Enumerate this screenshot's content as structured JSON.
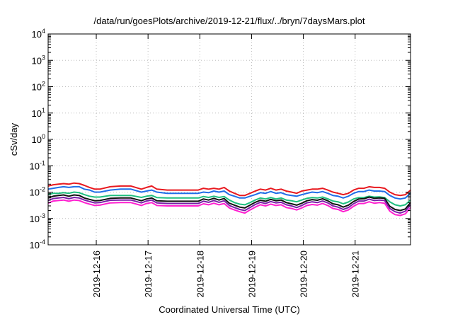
{
  "chart_data": {
    "type": "line",
    "title": "/data/run/goesPlots/archive/2019-12-21/flux/../bryn/7daysMars.plot",
    "xlabel": "Coordinated Universal Time (UTC)",
    "ylabel": "cSv/day",
    "yscale": "log",
    "ylim": [
      0.0001,
      10000
    ],
    "xlim": [
      0,
      7
    ],
    "grid": true,
    "y_ticks": [
      {
        "value": 0.0001,
        "base": "10",
        "exp": "-4"
      },
      {
        "value": 0.001,
        "base": "10",
        "exp": "-3"
      },
      {
        "value": 0.01,
        "base": "10",
        "exp": "-2"
      },
      {
        "value": 0.1,
        "base": "10",
        "exp": "-1"
      },
      {
        "value": 1,
        "base": "10",
        "exp": "0"
      },
      {
        "value": 10,
        "base": "10",
        "exp": "1"
      },
      {
        "value": 100,
        "base": "10",
        "exp": "2"
      },
      {
        "value": 1000,
        "base": "10",
        "exp": "3"
      },
      {
        "value": 10000,
        "base": "10",
        "exp": "4"
      }
    ],
    "x_ticks": [
      {
        "value": 0.93,
        "label": "2019-12-16"
      },
      {
        "value": 1.93,
        "label": "2019-12-17"
      },
      {
        "value": 2.93,
        "label": "2019-12-18"
      },
      {
        "value": 3.93,
        "label": "2019-12-19"
      },
      {
        "value": 4.93,
        "label": "2019-12-20"
      },
      {
        "value": 5.93,
        "label": "2019-12-21"
      }
    ],
    "x": [
      0,
      0.1,
      0.2,
      0.3,
      0.4,
      0.5,
      0.6,
      0.7,
      0.8,
      0.9,
      1.0,
      1.2,
      1.4,
      1.6,
      1.8,
      1.9,
      2.0,
      2.1,
      2.3,
      2.6,
      2.9,
      3.0,
      3.1,
      3.2,
      3.3,
      3.4,
      3.5,
      3.6,
      3.7,
      3.8,
      3.9,
      4.0,
      4.1,
      4.2,
      4.3,
      4.4,
      4.5,
      4.6,
      4.7,
      4.8,
      4.9,
      5.0,
      5.1,
      5.2,
      5.3,
      5.4,
      5.5,
      5.6,
      5.7,
      5.8,
      5.9,
      6.0,
      6.1,
      6.2,
      6.3,
      6.4,
      6.5,
      6.6,
      6.7,
      6.8,
      6.9,
      7.0
    ],
    "series": [
      {
        "name": "red",
        "color": "#e8191f",
        "values": [
          0.017,
          0.019,
          0.02,
          0.021,
          0.02,
          0.022,
          0.021,
          0.018,
          0.015,
          0.013,
          0.013,
          0.016,
          0.017,
          0.017,
          0.013,
          0.015,
          0.017,
          0.013,
          0.012,
          0.012,
          0.012,
          0.014,
          0.013,
          0.014,
          0.013,
          0.015,
          0.011,
          0.009,
          0.0075,
          0.0075,
          0.009,
          0.011,
          0.013,
          0.012,
          0.014,
          0.012,
          0.013,
          0.011,
          0.01,
          0.009,
          0.011,
          0.012,
          0.013,
          0.013,
          0.014,
          0.012,
          0.01,
          0.009,
          0.008,
          0.009,
          0.012,
          0.014,
          0.014,
          0.016,
          0.015,
          0.015,
          0.014,
          0.01,
          0.008,
          0.0075,
          0.008,
          0.012
        ]
      },
      {
        "name": "blue",
        "color": "#1f6ee8",
        "values": [
          0.013,
          0.014,
          0.015,
          0.016,
          0.015,
          0.016,
          0.016,
          0.013,
          0.012,
          0.01,
          0.01,
          0.012,
          0.013,
          0.013,
          0.01,
          0.011,
          0.012,
          0.01,
          0.009,
          0.009,
          0.009,
          0.01,
          0.0095,
          0.011,
          0.01,
          0.011,
          0.008,
          0.007,
          0.006,
          0.006,
          0.007,
          0.008,
          0.0095,
          0.009,
          0.0105,
          0.009,
          0.0095,
          0.008,
          0.0075,
          0.007,
          0.008,
          0.009,
          0.01,
          0.0095,
          0.0105,
          0.009,
          0.0075,
          0.007,
          0.006,
          0.007,
          0.009,
          0.0105,
          0.0105,
          0.012,
          0.011,
          0.011,
          0.0105,
          0.0075,
          0.006,
          0.0055,
          0.006,
          0.009
        ]
      },
      {
        "name": "green",
        "color": "#1fbf7f",
        "values": [
          0.008,
          0.009,
          0.009,
          0.0095,
          0.009,
          0.01,
          0.0095,
          0.008,
          0.007,
          0.0065,
          0.0065,
          0.0075,
          0.0075,
          0.0075,
          0.0063,
          0.007,
          0.0075,
          0.0062,
          0.006,
          0.006,
          0.006,
          0.0068,
          0.0063,
          0.007,
          0.0063,
          0.0068,
          0.005,
          0.004,
          0.0035,
          0.0033,
          0.004,
          0.005,
          0.006,
          0.0055,
          0.0062,
          0.0055,
          0.006,
          0.005,
          0.0047,
          0.0043,
          0.005,
          0.0058,
          0.0062,
          0.006,
          0.0065,
          0.0056,
          0.0046,
          0.0043,
          0.0036,
          0.0042,
          0.0055,
          0.0062,
          0.0062,
          0.007,
          0.0065,
          0.0066,
          0.0062,
          0.0043,
          0.0033,
          0.003,
          0.0033,
          0.005
        ]
      },
      {
        "name": "black",
        "color": "#111111",
        "values": [
          0.006,
          0.007,
          0.0075,
          0.0078,
          0.007,
          0.0078,
          0.0075,
          0.006,
          0.0053,
          0.0047,
          0.0048,
          0.0058,
          0.006,
          0.006,
          0.0047,
          0.0055,
          0.006,
          0.0047,
          0.0045,
          0.0045,
          0.0045,
          0.0055,
          0.005,
          0.0058,
          0.005,
          0.0057,
          0.0038,
          0.0032,
          0.0027,
          0.0025,
          0.0032,
          0.0041,
          0.0049,
          0.0045,
          0.0053,
          0.0047,
          0.005,
          0.004,
          0.0036,
          0.0032,
          0.0038,
          0.0047,
          0.0052,
          0.0049,
          0.0056,
          0.0047,
          0.0036,
          0.0033,
          0.0027,
          0.0032,
          0.0044,
          0.0055,
          0.0056,
          0.0065,
          0.0058,
          0.006,
          0.0058,
          0.0029,
          0.0022,
          0.002,
          0.0023,
          0.004
        ]
      },
      {
        "name": "purple",
        "color": "#7a1fa8",
        "values": [
          0.0048,
          0.0057,
          0.006,
          0.0063,
          0.0056,
          0.0063,
          0.006,
          0.005,
          0.0044,
          0.0039,
          0.004,
          0.0049,
          0.005,
          0.005,
          0.0039,
          0.0046,
          0.005,
          0.0039,
          0.0037,
          0.0037,
          0.0037,
          0.0045,
          0.0041,
          0.0048,
          0.0041,
          0.0047,
          0.0031,
          0.0026,
          0.0022,
          0.002,
          0.0026,
          0.0034,
          0.0041,
          0.0037,
          0.0044,
          0.0039,
          0.0041,
          0.0033,
          0.003,
          0.0026,
          0.0031,
          0.0039,
          0.0043,
          0.004,
          0.0046,
          0.0039,
          0.003,
          0.0027,
          0.0022,
          0.0026,
          0.0036,
          0.0046,
          0.0046,
          0.0054,
          0.0048,
          0.005,
          0.0048,
          0.0024,
          0.0018,
          0.0016,
          0.0019,
          0.0033
        ]
      },
      {
        "name": "magenta",
        "color": "#ff1fd0",
        "values": [
          0.0038,
          0.0046,
          0.0048,
          0.005,
          0.0045,
          0.005,
          0.0048,
          0.004,
          0.0035,
          0.0031,
          0.0032,
          0.0039,
          0.004,
          0.004,
          0.0031,
          0.0037,
          0.004,
          0.0031,
          0.003,
          0.003,
          0.003,
          0.0036,
          0.0033,
          0.0038,
          0.0033,
          0.0037,
          0.0025,
          0.0021,
          0.0018,
          0.0016,
          0.0021,
          0.0027,
          0.0033,
          0.003,
          0.0035,
          0.0031,
          0.0033,
          0.0026,
          0.0024,
          0.0021,
          0.0025,
          0.0031,
          0.0034,
          0.0032,
          0.0037,
          0.0031,
          0.0024,
          0.0022,
          0.0018,
          0.0021,
          0.0029,
          0.0037,
          0.0037,
          0.0043,
          0.0038,
          0.004,
          0.0038,
          0.0019,
          0.0014,
          0.0013,
          0.0015,
          0.0026
        ]
      }
    ]
  }
}
